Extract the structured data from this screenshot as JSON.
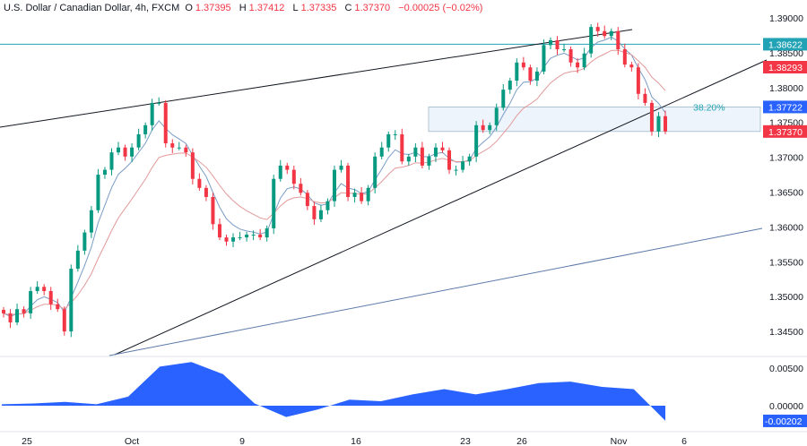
{
  "header": {
    "symbol": "U.S. Dollar / Canadian Dollar, 4h, FXCM",
    "open_label": "O",
    "open": "1.37395",
    "high_label": "H",
    "high": "1.37412",
    "low_label": "L",
    "low": "1.37335",
    "close_label": "C",
    "close": "1.37370",
    "change": "−0.00025 (−0.02%)"
  },
  "colors": {
    "up": "#089981",
    "down": "#f23645",
    "ma_fast": "#7a9cc6",
    "ma_slow": "#e39a9a",
    "oscillator": "#2962ff",
    "resistance": "#22a3b5",
    "fib": "#9fb8c8",
    "trendline": "#131722",
    "channel": "#5b7aa8"
  },
  "chart_data": {
    "type": "candlestick",
    "timeframe": "4h",
    "x_tick_labels": [
      "25",
      "Oct",
      "9",
      "16",
      "23",
      "26",
      "Nov",
      "6"
    ],
    "y_tick_labels": [
      "1.39000",
      "1.38500",
      "1.38000",
      "1.37500",
      "1.37000",
      "1.36500",
      "1.36000",
      "1.35500",
      "1.35000",
      "1.34500"
    ],
    "ylim": [
      1.3415,
      1.3925
    ],
    "closes": [
      1.3476,
      1.3463,
      1.3482,
      1.3476,
      1.3508,
      1.3514,
      1.3508,
      1.3489,
      1.3482,
      1.345,
      1.354,
      1.3566,
      1.3592,
      1.3624,
      1.3675,
      1.3682,
      1.3707,
      1.3714,
      1.3701,
      1.3714,
      1.3733,
      1.3746,
      1.3778,
      1.3778,
      1.372,
      1.3714,
      1.3714,
      1.3707,
      1.3669,
      1.3656,
      1.3643,
      1.3604,
      1.3585,
      1.3579,
      1.3585,
      1.3585,
      1.3589,
      1.3589,
      1.3585,
      1.3598,
      1.3669,
      1.3688,
      1.3682,
      1.3662,
      1.3649,
      1.363,
      1.3611,
      1.3624,
      1.3637,
      1.3682,
      1.3688,
      1.3643,
      1.3649,
      1.3637,
      1.3656,
      1.3701,
      1.3714,
      1.3733,
      1.3733,
      1.3694,
      1.3701,
      1.3714,
      1.3688,
      1.3701,
      1.3714,
      1.371,
      1.3682,
      1.3682,
      1.3694,
      1.3701,
      1.3746,
      1.3739,
      1.3746,
      1.3771,
      1.3797,
      1.381,
      1.3836,
      1.3829,
      1.381,
      1.3823,
      1.3861,
      1.3868,
      1.3855,
      1.3855,
      1.3836,
      1.3829,
      1.3849,
      1.3887,
      1.3881,
      1.3874,
      1.3881,
      1.3855,
      1.3833,
      1.3829,
      1.3791,
      1.3778,
      1.3737,
      1.3759,
      1.3737
    ],
    "price_levels": [
      {
        "label": "1.38622",
        "type": "horizontal-line",
        "color": "#22a3b5"
      },
      {
        "label": "1.38293",
        "type": "moving-average-value",
        "color": "#f23645"
      },
      {
        "label": "1.37722",
        "type": "fib-level",
        "color": "#2962ff"
      },
      {
        "label": "1.37370",
        "type": "last-price",
        "color": "#f23645"
      }
    ],
    "fib_label": "38.20%",
    "oscillator": {
      "type": "area",
      "ylim": [
        -0.0025,
        0.0065
      ],
      "y_tick_labels": [
        "0.00500",
        "0.00000"
      ],
      "current_label": "-0.00202",
      "values": [
        0.0002,
        0.0003,
        0.0005,
        0.0002,
        0.0012,
        0.0052,
        0.0058,
        0.0042,
        0.0003,
        -0.0015,
        -0.0005,
        0.0008,
        0.0006,
        0.0015,
        0.0022,
        0.0015,
        0.0022,
        0.003,
        0.0032,
        0.0025,
        0.0022,
        -0.002
      ]
    }
  }
}
